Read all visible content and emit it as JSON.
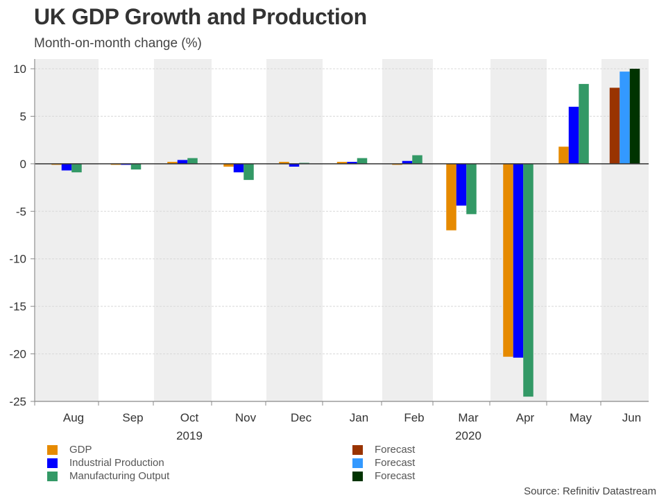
{
  "header": {
    "title": "UK GDP Growth and Production",
    "subtitle": "Month-on-month change (%)"
  },
  "source": "Source: Refinitiv Datastream",
  "chart_data": {
    "type": "bar",
    "title": "UK GDP Growth and Production",
    "subtitle": "Month-on-month change (%)",
    "xlabel": "",
    "ylabel": "Month-on-month change (%)",
    "ylim": [
      -25,
      10
    ],
    "yticks": [
      10,
      5,
      0,
      -5,
      -10,
      -15,
      -20,
      -25
    ],
    "grid": true,
    "categories": [
      "Aug",
      "Sep",
      "Oct",
      "Nov",
      "Dec",
      "Jan",
      "Feb",
      "Mar",
      "Apr",
      "May",
      "Jun"
    ],
    "year_labels": [
      {
        "label": "2019",
        "under": "Oct"
      },
      {
        "label": "2020",
        "under": "Mar"
      }
    ],
    "series": [
      {
        "name": "GDP",
        "color": "#E68A00",
        "values": [
          -0.1,
          -0.1,
          0.2,
          -0.3,
          0.2,
          0.2,
          -0.1,
          -7.0,
          -20.3,
          1.8,
          null
        ]
      },
      {
        "name": "Industrial Production",
        "color": "#0000FF",
        "values": [
          -0.7,
          -0.1,
          0.4,
          -0.9,
          -0.3,
          0.2,
          0.3,
          -4.4,
          -20.4,
          6.0,
          null
        ]
      },
      {
        "name": "Manufacturing Output",
        "color": "#339966",
        "values": [
          -0.9,
          -0.6,
          0.6,
          -1.7,
          0.1,
          0.6,
          0.9,
          -5.3,
          -24.5,
          8.4,
          null
        ]
      },
      {
        "name": "Forecast",
        "color": "#993300",
        "values": [
          null,
          null,
          null,
          null,
          null,
          null,
          null,
          null,
          null,
          null,
          8.0
        ]
      },
      {
        "name": "Forecast",
        "color": "#3399FF",
        "values": [
          null,
          null,
          null,
          null,
          null,
          null,
          null,
          null,
          null,
          null,
          9.7
        ]
      },
      {
        "name": "Forecast",
        "color": "#003300",
        "values": [
          null,
          null,
          null,
          null,
          null,
          null,
          null,
          null,
          null,
          null,
          10.0
        ]
      }
    ],
    "legend": {
      "placement": "bottom",
      "left": [
        "GDP",
        "Industrial Production",
        "Manufacturing Output"
      ],
      "right": [
        "Forecast",
        "Forecast",
        "Forecast"
      ]
    }
  }
}
